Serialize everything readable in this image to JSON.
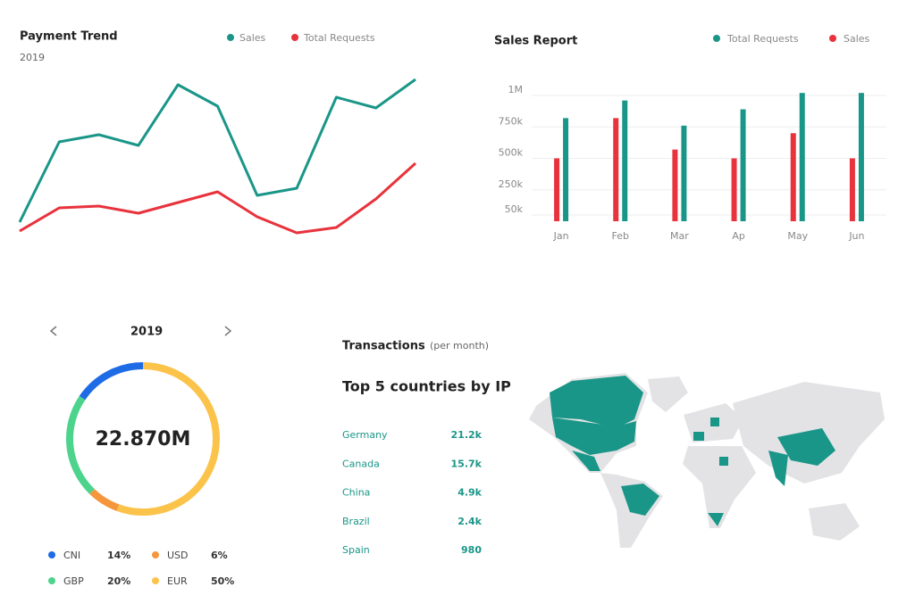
{
  "chart_data": [
    {
      "type": "line",
      "title": "Payment Trend",
      "subtitle": "2019",
      "categories": [
        null,
        null,
        null,
        null,
        null,
        null,
        null,
        null,
        null,
        null,
        null
      ],
      "ylim": [
        0,
        100
      ],
      "series": [
        {
          "name": "Sales",
          "color": "#1a9688",
          "values": [
            13,
            58,
            62,
            56,
            90,
            78,
            28,
            32,
            83,
            77,
            93
          ]
        },
        {
          "name": "Total Requests",
          "color": "#e8323c",
          "values": [
            8,
            21,
            22,
            18,
            24,
            30,
            16,
            7,
            10,
            26,
            46
          ]
        }
      ]
    },
    {
      "type": "bar",
      "title": "Sales Report",
      "categories": [
        "Jan",
        "Feb",
        "Mar",
        "Ap",
        "May",
        "Jun"
      ],
      "ylim": [
        0,
        1000000
      ],
      "yticks": [
        {
          "value": 1000000,
          "label": "1M"
        },
        {
          "value": 750000,
          "label": "750k"
        },
        {
          "value": 500000,
          "label": "500k"
        },
        {
          "value": 250000,
          "label": "250k"
        },
        {
          "value": 50000,
          "label": "50k"
        }
      ],
      "grid": true,
      "series": [
        {
          "name": "Total Requests",
          "color": "#1a9688",
          "values": [
            820000,
            960000,
            760000,
            890000,
            1020000,
            1020000
          ]
        },
        {
          "name": "Sales",
          "color": "#e8323c",
          "values": [
            500000,
            820000,
            570000,
            500000,
            700000,
            500000
          ]
        }
      ]
    },
    {
      "type": "donut",
      "title": "2019",
      "center_label": "22.870M",
      "categories": [
        "CNI",
        "GBP",
        "USD",
        "EUR"
      ],
      "values": [
        14,
        20,
        6,
        50
      ],
      "value_labels": [
        "14%",
        "20%",
        "6%",
        "50%"
      ],
      "colors": [
        "#1e6be6",
        "#4cd38c",
        "#f5963c",
        "#fbc34a"
      ]
    }
  ],
  "transactions": {
    "title": "Transactions",
    "note": "(per month)",
    "heading": "Top 5 countries by IP",
    "rows": [
      [
        "Germany",
        "21.2k"
      ],
      [
        "Canada",
        "15.7k"
      ],
      [
        "China",
        "4.9k"
      ],
      [
        "Brazil",
        "2.4k"
      ],
      [
        "Spain",
        "980"
      ]
    ]
  }
}
